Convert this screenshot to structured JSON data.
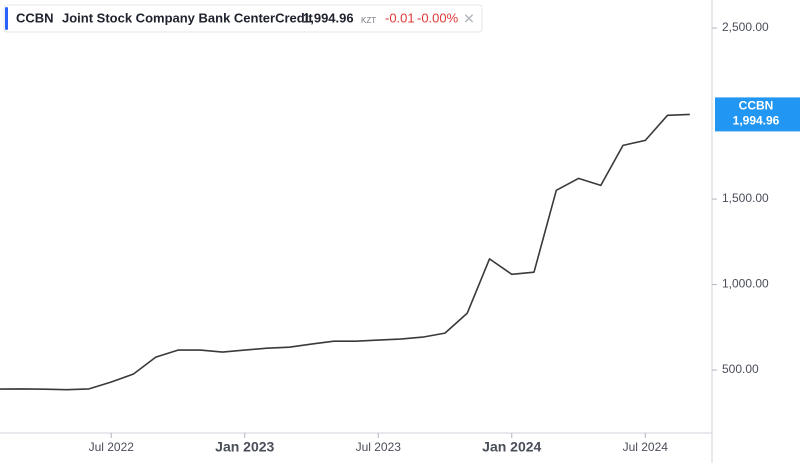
{
  "header": {
    "symbol": "CCBN",
    "name": "Joint Stock Company Bank CenterCredit",
    "price": "1,994.96",
    "currency": "KZT",
    "change": "-0.01",
    "change_pct": "-0.00%"
  },
  "price_label": {
    "symbol": "CCBN",
    "price": "1,994.96"
  },
  "chart_data": {
    "type": "line",
    "x": [
      "2022-02",
      "2022-03",
      "2022-04",
      "2022-05",
      "2022-06",
      "2022-07",
      "2022-08",
      "2022-09",
      "2022-10",
      "2022-11",
      "2022-12",
      "2023-01",
      "2023-02",
      "2023-03",
      "2023-04",
      "2023-05",
      "2023-06",
      "2023-07",
      "2023-08",
      "2023-09",
      "2023-10",
      "2023-11",
      "2023-12",
      "2024-01",
      "2024-02",
      "2024-03",
      "2024-04",
      "2024-05",
      "2024-06",
      "2024-07",
      "2024-08",
      "2024-09"
    ],
    "series": [
      {
        "name": "CCBN",
        "color": "#3a3a3a",
        "values": [
          389,
          390,
          388,
          385,
          390,
          430,
          477,
          576,
          617,
          617,
          605,
          617,
          628,
          634,
          652,
          669,
          669,
          675,
          681,
          693,
          716,
          833,
          1150,
          1060,
          1072,
          1551,
          1621,
          1580,
          1814,
          1843,
          1990,
          1995
        ]
      }
    ],
    "xlim": [
      "2022-02",
      "2024-10"
    ],
    "xticks": [
      {
        "value": "2022-07",
        "label": "Jul 2022"
      },
      {
        "value": "2023-01",
        "label": "Jan 2023"
      },
      {
        "value": "2023-07",
        "label": "Jul 2023"
      },
      {
        "value": "2024-01",
        "label": "Jan 2024"
      },
      {
        "value": "2024-07",
        "label": "Jul 2024"
      }
    ],
    "ylim": [
      132,
      2664
    ],
    "yticks": [
      {
        "value": 500,
        "label": "500.00"
      },
      {
        "value": 1000,
        "label": "1,000.00"
      },
      {
        "value": 1500,
        "label": "1,500.00"
      },
      {
        "value": 2500,
        "label": "2,500.00"
      }
    ],
    "grid": false
  }
}
